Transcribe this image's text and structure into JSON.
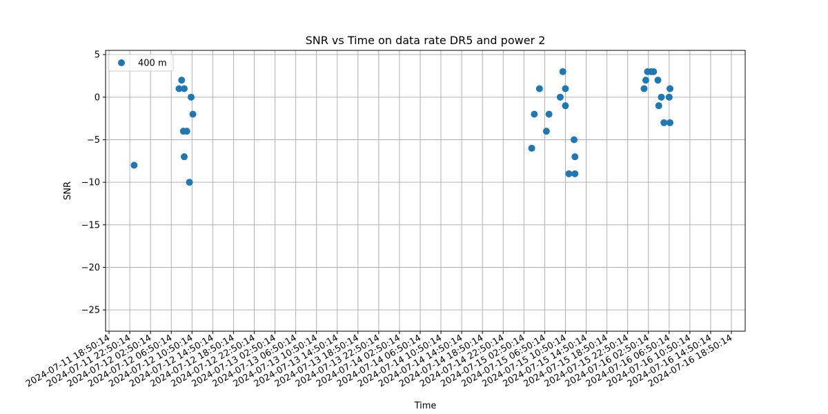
{
  "chart_data": {
    "type": "scatter",
    "title": "SNR vs Time on data rate DR5 and power 2",
    "xlabel": "Time",
    "ylabel": "SNR",
    "grid": true,
    "legend_position": "top-left",
    "colors": {
      "series": "#1f77b4",
      "grid": "#b0b0b0"
    },
    "x_ticks": [
      "2024-07-11 18:50:14",
      "2024-07-11 22:50:14",
      "2024-07-12 02:50:14",
      "2024-07-12 06:50:14",
      "2024-07-12 10:50:14",
      "2024-07-12 14:50:14",
      "2024-07-12 18:50:14",
      "2024-07-12 22:50:14",
      "2024-07-13 02:50:14",
      "2024-07-13 06:50:14",
      "2024-07-13 10:50:14",
      "2024-07-13 14:50:14",
      "2024-07-13 18:50:14",
      "2024-07-13 22:50:14",
      "2024-07-14 02:50:14",
      "2024-07-14 06:50:14",
      "2024-07-14 10:50:14",
      "2024-07-14 14:50:14",
      "2024-07-14 18:50:14",
      "2024-07-14 22:50:14",
      "2024-07-15 02:50:14",
      "2024-07-15 06:50:14",
      "2024-07-15 10:50:14",
      "2024-07-15 14:50:14",
      "2024-07-15 18:50:14",
      "2024-07-15 22:50:14",
      "2024-07-16 02:50:14",
      "2024-07-16 06:50:14",
      "2024-07-16 10:50:14",
      "2024-07-16 14:50:14",
      "2024-07-16 18:50:14"
    ],
    "y_ticks": [
      5,
      0,
      -5,
      -10,
      -15,
      -20,
      -25
    ],
    "xlim": [
      "2024-07-11 18:10:00",
      "2024-07-16 21:30:00"
    ],
    "ylim": [
      -27.5,
      5.5
    ],
    "series": [
      {
        "name": "400 m",
        "points": [
          {
            "x": "2024-07-11 23:40:00",
            "y": -8
          },
          {
            "x": "2024-07-12 08:20:00",
            "y": 1
          },
          {
            "x": "2024-07-12 08:50:00",
            "y": 2
          },
          {
            "x": "2024-07-12 09:10:00",
            "y": -4
          },
          {
            "x": "2024-07-12 09:20:00",
            "y": -7
          },
          {
            "x": "2024-07-12 09:20:00",
            "y": 1
          },
          {
            "x": "2024-07-12 09:50:00",
            "y": -4
          },
          {
            "x": "2024-07-12 10:20:00",
            "y": -10
          },
          {
            "x": "2024-07-12 10:40:00",
            "y": 0
          },
          {
            "x": "2024-07-12 11:00:00",
            "y": -2
          },
          {
            "x": "2024-07-15 04:20:00",
            "y": -6
          },
          {
            "x": "2024-07-15 04:50:00",
            "y": -2
          },
          {
            "x": "2024-07-15 05:50:00",
            "y": 1
          },
          {
            "x": "2024-07-15 07:10:00",
            "y": -4
          },
          {
            "x": "2024-07-15 07:40:00",
            "y": -2
          },
          {
            "x": "2024-07-15 09:50:00",
            "y": 0
          },
          {
            "x": "2024-07-15 10:20:00",
            "y": 3
          },
          {
            "x": "2024-07-15 10:50:00",
            "y": -1
          },
          {
            "x": "2024-07-15 10:50:00",
            "y": 1
          },
          {
            "x": "2024-07-15 11:30:00",
            "y": -9
          },
          {
            "x": "2024-07-15 12:30:00",
            "y": -5
          },
          {
            "x": "2024-07-15 12:40:00",
            "y": -7
          },
          {
            "x": "2024-07-15 12:40:00",
            "y": -9
          },
          {
            "x": "2024-07-16 02:00:00",
            "y": 1
          },
          {
            "x": "2024-07-16 02:20:00",
            "y": 2
          },
          {
            "x": "2024-07-16 02:40:00",
            "y": 3
          },
          {
            "x": "2024-07-16 03:20:00",
            "y": 3
          },
          {
            "x": "2024-07-16 03:50:00",
            "y": 3
          },
          {
            "x": "2024-07-16 04:40:00",
            "y": 2
          },
          {
            "x": "2024-07-16 04:50:00",
            "y": -1
          },
          {
            "x": "2024-07-16 05:20:00",
            "y": 0
          },
          {
            "x": "2024-07-16 05:50:00",
            "y": -3
          },
          {
            "x": "2024-07-16 06:50:00",
            "y": 0
          },
          {
            "x": "2024-07-16 07:00:00",
            "y": 1
          },
          {
            "x": "2024-07-16 07:00:00",
            "y": -3
          }
        ]
      }
    ]
  }
}
